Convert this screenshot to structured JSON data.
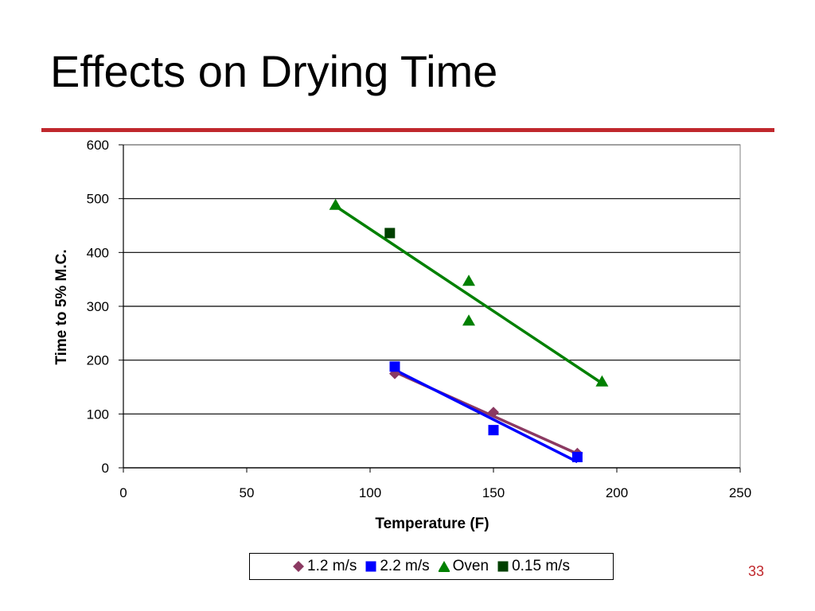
{
  "slide": {
    "title": "Effects on Drying Time",
    "page_number": "33",
    "accent_color": "#c0282d"
  },
  "chart_data": {
    "type": "scatter",
    "xlabel": "Temperature (F)",
    "ylabel": "Time to 5% M.C.",
    "xlim": [
      0,
      250
    ],
    "ylim": [
      0,
      600
    ],
    "x_ticks": [
      "0",
      "50",
      "100",
      "150",
      "200",
      "250"
    ],
    "y_ticks": [
      "0",
      "100",
      "200",
      "300",
      "400",
      "500",
      "600"
    ],
    "grid": "horizontal",
    "legend_position": "bottom",
    "series": [
      {
        "name": "1.2 m/s",
        "marker": "diamond",
        "color": "#8b3a62",
        "points": [
          [
            110,
            175
          ],
          [
            150,
            103
          ],
          [
            184,
            27
          ]
        ],
        "trendline": [
          [
            110,
            178
          ],
          [
            184,
            26
          ]
        ]
      },
      {
        "name": "2.2 m/s",
        "marker": "square",
        "color": "#0000ff",
        "points": [
          [
            110,
            188
          ],
          [
            150,
            70
          ],
          [
            184,
            20
          ]
        ],
        "trendline": [
          [
            110,
            182
          ],
          [
            184,
            11
          ]
        ]
      },
      {
        "name": "Oven",
        "marker": "triangle",
        "color": "#008000",
        "points": [
          [
            86,
            488
          ],
          [
            140,
            347
          ],
          [
            140,
            273
          ],
          [
            194,
            160
          ]
        ],
        "trendline": [
          [
            86,
            486
          ],
          [
            194,
            157
          ]
        ]
      },
      {
        "name": "0.15 m/s",
        "marker": "square",
        "color": "#004000",
        "points": [
          [
            108,
            436
          ]
        ]
      }
    ]
  }
}
